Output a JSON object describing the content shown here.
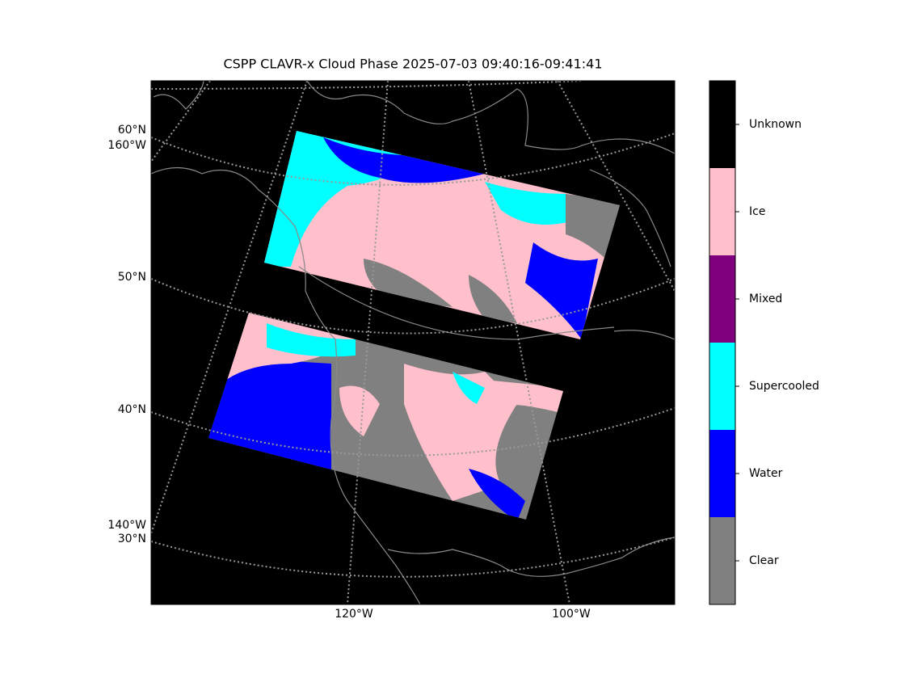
{
  "title": "CSPP CLAVR-x Cloud Phase 2025-07-03 09:40:16-09:41:41",
  "map": {
    "graticule_labels": [
      "60°N",
      "160°W",
      "50°N",
      "40°N",
      "140°W",
      "30°N",
      "120°W",
      "100°W"
    ]
  },
  "colorbar": {
    "classes": [
      {
        "name": "Unknown",
        "color": "#000000"
      },
      {
        "name": "Ice",
        "color": "#ffc0cb"
      },
      {
        "name": "Mixed",
        "color": "#800080"
      },
      {
        "name": "Supercooled",
        "color": "#00ffff"
      },
      {
        "name": "Water",
        "color": "#0000ff"
      },
      {
        "name": "Clear",
        "color": "#808080"
      }
    ]
  }
}
